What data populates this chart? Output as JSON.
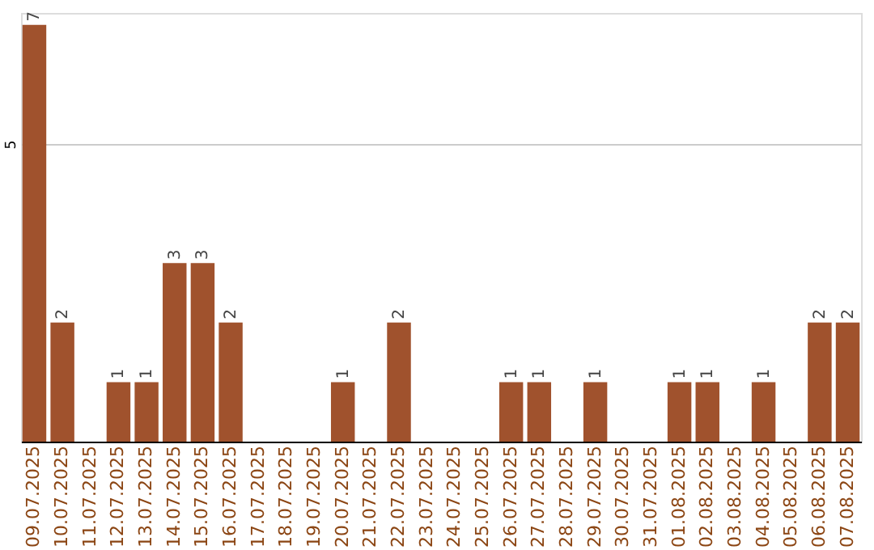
{
  "chart_data": {
    "type": "bar",
    "categories": [
      "09.07.2025",
      "10.07.2025",
      "11.07.2025",
      "12.07.2025",
      "13.07.2025",
      "14.07.2025",
      "15.07.2025",
      "16.07.2025",
      "17.07.2025",
      "18.07.2025",
      "19.07.2025",
      "20.07.2025",
      "21.07.2025",
      "22.07.2025",
      "23.07.2025",
      "24.07.2025",
      "25.07.2025",
      "26.07.2025",
      "27.07.2025",
      "28.07.2025",
      "29.07.2025",
      "30.07.2025",
      "31.07.2025",
      "01.08.2025",
      "02.08.2025",
      "03.08.2025",
      "04.08.2025",
      "05.08.2025",
      "06.08.2025",
      "07.08.2025"
    ],
    "values": [
      7,
      2,
      0,
      1,
      1,
      3,
      3,
      2,
      0,
      0,
      0,
      1,
      0,
      2,
      0,
      0,
      0,
      1,
      1,
      0,
      1,
      0,
      0,
      1,
      1,
      0,
      1,
      0,
      2,
      2
    ],
    "value_labels": [
      "7",
      "2",
      null,
      "1",
      "1",
      "3",
      "3",
      "2",
      null,
      null,
      null,
      "1",
      null,
      "2",
      null,
      null,
      null,
      "1",
      "1",
      null,
      "1",
      null,
      null,
      "1",
      "1",
      null,
      "1",
      null,
      "2",
      "2"
    ],
    "color": "#a0522d",
    "ylim": [
      0,
      7.2
    ],
    "yticks": [
      5
    ],
    "grid": "y"
  }
}
